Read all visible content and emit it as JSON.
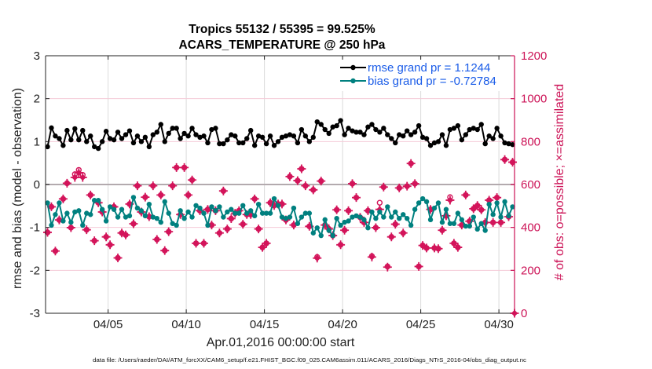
{
  "chart_data": {
    "type": "line",
    "title": [
      "Tropics 55132 / 55395 = 99.525%",
      "ACARS_TEMPERATURE @ 250 hPa"
    ],
    "xlabel": "Apr.01,2016 00:00:00 start",
    "ylabel": "rmse and bias (model - observation)",
    "ylabel_right": "# of obs: o=possible; ×=assimilated",
    "footnote": "data file: /Users/raeder/DAI/ATM_forcXX/CAM6_setup/f.e21.FHIST_BGC.f09_025.CAM6assim.011/ACARS_2016/Diags_NTrS_2016-04/obs_diag_output.nc",
    "x_units": "days since Apr.01,2016 00:00:00",
    "xlim": [
      0,
      30
    ],
    "ylim": [
      -3,
      3
    ],
    "ylim_right": [
      0,
      1200
    ],
    "x_ticks": [
      {
        "value": 4,
        "label": "04/05"
      },
      {
        "value": 9,
        "label": "04/10"
      },
      {
        "value": 14,
        "label": "04/15"
      },
      {
        "value": 19,
        "label": "04/20"
      },
      {
        "value": 24,
        "label": "04/25"
      },
      {
        "value": 29,
        "label": "04/30"
      }
    ],
    "y_ticks": [
      {
        "value": 3,
        "label": "3"
      },
      {
        "value": 2,
        "label": "2"
      },
      {
        "value": 1,
        "label": "1"
      },
      {
        "value": 0,
        "label": "0"
      },
      {
        "value": -1,
        "label": "-1"
      },
      {
        "value": -2,
        "label": "-2"
      },
      {
        "value": -3,
        "label": "-3"
      }
    ],
    "y_ticks_right": [
      {
        "value": 1200,
        "label": "1200"
      },
      {
        "value": 1000,
        "label": "1000"
      },
      {
        "value": 800,
        "label": "800"
      },
      {
        "value": 600,
        "label": "600"
      },
      {
        "value": 400,
        "label": "400"
      },
      {
        "value": 200,
        "label": "200"
      },
      {
        "value": 0,
        "label": "0"
      }
    ],
    "grid": {
      "vertical_at_x_ticks": true,
      "horizontal_zero_line": true,
      "horizontal_faint": true
    },
    "legend": {
      "placement": "top-right",
      "entries": [
        {
          "name": "rmse",
          "label": "rmse grand pr = 1.1244",
          "color": "#000000"
        },
        {
          "name": "bias",
          "label": "bias grand pr = -0.72784",
          "color": "#00807f"
        }
      ]
    },
    "colors": {
      "rmse": "#000000",
      "bias": "#00807f",
      "obs": "#d3145a",
      "right_axis": "#cc1256",
      "legend_text": "#1a5ce8",
      "zero_line": "#b3aaae"
    },
    "x_start": 0.125,
    "x_step": 0.25,
    "series": [
      {
        "name": "rmse",
        "axis": "left",
        "values": [
          0.88,
          1.32,
          1.13,
          1.07,
          0.91,
          1.26,
          1.04,
          1.3,
          1.04,
          1.26,
          1.0,
          1.13,
          0.88,
          0.84,
          1.0,
          1.24,
          1.07,
          1.04,
          1.22,
          1.07,
          1.16,
          1.25,
          0.97,
          1.13,
          1.0,
          1.1,
          0.88,
          1.16,
          1.22,
          1.4,
          1.0,
          1.19,
          1.31,
          1.31,
          1.07,
          1.19,
          1.13,
          1.31,
          1.16,
          1.1,
          1.13,
          0.97,
          1.28,
          1.31,
          0.95,
          0.95,
          1.04,
          1.16,
          1.13,
          0.97,
          0.97,
          1.07,
          1.26,
          0.91,
          1.13,
          1.1,
          0.95,
          1.13,
          0.91,
          1.0,
          1.1,
          1.13,
          1.16,
          1.13,
          0.97,
          1.28,
          1.13,
          1.0,
          1.1,
          1.46,
          1.4,
          1.28,
          1.19,
          1.34,
          1.37,
          1.49,
          1.16,
          1.31,
          1.25,
          1.22,
          1.22,
          1.16,
          1.34,
          1.4,
          1.28,
          1.22,
          1.31,
          1.16,
          1.07,
          0.97,
          1.16,
          1.13,
          1.25,
          1.16,
          1.22,
          1.37,
          1.1,
          1.07,
          0.91,
          0.97,
          1.0,
          1.16,
          0.91,
          1.28,
          1.31,
          1.37,
          1.04,
          1.16,
          1.28,
          1.31,
          1.28,
          1.4,
          0.95,
          1.13,
          1.07,
          1.31,
          1.13,
          0.97,
          0.95,
          0.93
        ]
      },
      {
        "name": "bias",
        "axis": "left",
        "values": [
          -0.43,
          -0.95,
          -0.7,
          -0.43,
          -0.85,
          -0.67,
          -0.88,
          -0.64,
          -0.61,
          -0.95,
          -0.67,
          -0.7,
          -0.37,
          -0.37,
          -0.58,
          -0.85,
          -0.52,
          -0.58,
          -0.76,
          -0.58,
          -0.76,
          -0.73,
          -0.3,
          -0.55,
          -0.61,
          -0.73,
          -0.46,
          -0.76,
          -0.79,
          -0.88,
          -0.4,
          -0.67,
          -0.91,
          -0.95,
          -0.61,
          -0.79,
          -0.64,
          -0.76,
          -0.49,
          -0.55,
          -0.67,
          -0.95,
          -0.52,
          -0.61,
          -0.52,
          -0.76,
          -0.64,
          -0.58,
          -0.67,
          -0.67,
          -0.49,
          -0.67,
          -0.61,
          -0.73,
          -0.46,
          -0.67,
          -0.67,
          -0.67,
          -0.33,
          -0.49,
          -0.76,
          -0.79,
          -0.76,
          -0.55,
          -0.91,
          -0.76,
          -0.67,
          -0.67,
          -1.13,
          -1.01,
          -1.19,
          -0.82,
          -1.07,
          -1.19,
          -0.79,
          -0.95,
          -0.88,
          -0.85,
          -0.76,
          -0.73,
          -0.76,
          -0.82,
          -1.01,
          -0.64,
          -0.79,
          -0.64,
          -0.76,
          -0.52,
          -0.76,
          -0.64,
          -0.79,
          -0.7,
          -0.79,
          -0.95,
          -0.58,
          -0.43,
          -0.33,
          -0.4,
          -0.82,
          -0.55,
          -0.43,
          -0.88,
          -0.58,
          -0.91,
          -0.91,
          -0.67,
          -0.82,
          -0.97,
          -0.97,
          -0.76,
          -1.04,
          -0.91,
          -1.07,
          -0.46,
          -0.7,
          -0.43,
          -0.76,
          -0.4,
          -0.73,
          -0.52
        ]
      },
      {
        "name": "obs_assimilated",
        "axis": "right",
        "values": [
          377,
          496,
          290,
          435,
          533,
          606,
          399,
          633,
          655,
          633,
          389,
          551,
          338,
          515,
          472,
          356,
          319,
          496,
          258,
          374,
          365,
          509,
          417,
          594,
          472,
          541,
          450,
          594,
          344,
          551,
          292,
          380,
          594,
          679,
          460,
          679,
          551,
          621,
          326,
          478,
          326,
          484,
          411,
          478,
          374,
          570,
          393,
          441,
          466,
          478,
          415,
          460,
          460,
          533,
          393,
          307,
          326,
          515,
          502,
          509,
          509,
          435,
          637,
          411,
          618,
          673,
          594,
          405,
          575,
          257,
          616,
          411,
          393,
          362,
          482,
          319,
          387,
          478,
          604,
          539,
          447,
          423,
          478,
          262,
          399,
          484,
          588,
          215,
          356,
          415,
          584,
          374,
          592,
          698,
          604,
          218,
          316,
          304,
          484,
          304,
          301,
          387,
          454,
          527,
          326,
          307,
          411,
          551,
          429,
          487,
          502,
          482,
          423,
          527,
          423,
          539,
          423,
          716,
          450,
          704
        ]
      },
      {
        "name": "obs_possible",
        "axis": "right",
        "values": [
          377,
          496,
          290,
          435,
          533,
          606,
          399,
          648,
          668,
          645,
          389,
          551,
          338,
          515,
          472,
          356,
          319,
          496,
          258,
          374,
          365,
          509,
          417,
          594,
          472,
          541,
          450,
          594,
          344,
          551,
          292,
          380,
          594,
          679,
          460,
          679,
          551,
          621,
          326,
          478,
          326,
          484,
          411,
          478,
          374,
          570,
          393,
          441,
          466,
          478,
          415,
          460,
          460,
          533,
          393,
          307,
          326,
          515,
          502,
          509,
          509,
          435,
          637,
          411,
          618,
          673,
          594,
          405,
          575,
          262,
          616,
          411,
          393,
          362,
          482,
          319,
          387,
          478,
          604,
          539,
          447,
          423,
          478,
          266,
          399,
          515,
          588,
          218,
          356,
          415,
          584,
          374,
          592,
          698,
          604,
          218,
          316,
          304,
          484,
          304,
          301,
          387,
          454,
          541,
          326,
          307,
          411,
          551,
          429,
          487,
          502,
          482,
          423,
          527,
          423,
          539,
          423,
          716,
          450,
          704
        ]
      }
    ],
    "extra_obs_points": [
      {
        "x": 30,
        "value": 0
      }
    ]
  }
}
